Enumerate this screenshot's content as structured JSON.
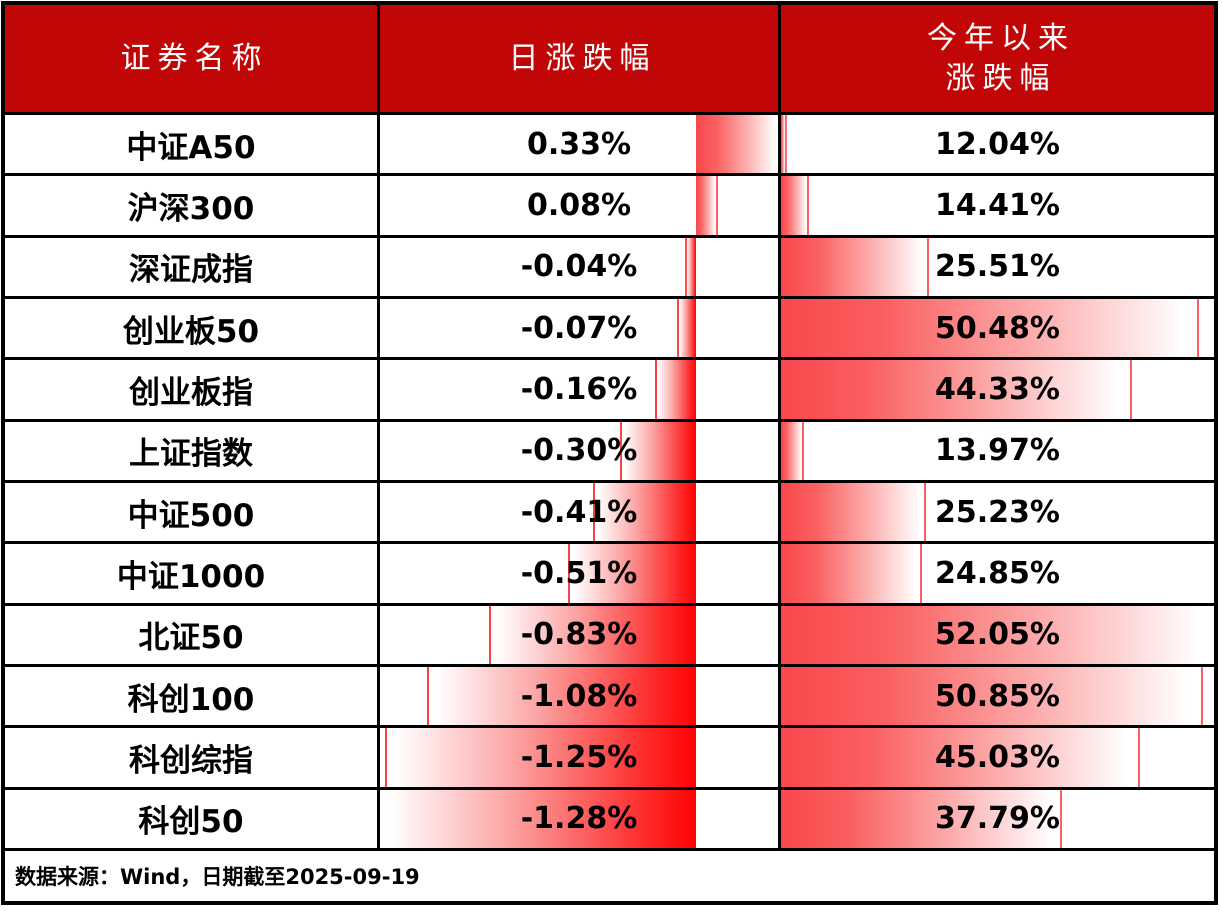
{
  "palette": {
    "header_bg": "#c00606",
    "header_text": "#ffffff",
    "grid_line": "#000000",
    "row_bg": "#ffffff",
    "text": "#000000",
    "bar_red_deep": "#ff0000",
    "bar_red_soft": "#f9474d"
  },
  "header": {
    "security_name": "证券名称",
    "daily_change": "日涨跌幅",
    "ytd_line1": "今年以来",
    "ytd_line2": "涨跌幅"
  },
  "footer": {
    "note": "数据来源：Wind，日期截至2025-09-19"
  },
  "chart_data": {
    "type": "table",
    "columns": [
      "证券名称",
      "日涨跌幅",
      "今年以来涨跌幅"
    ],
    "rows": [
      {
        "name": "中证A50",
        "daily": 0.33,
        "daily_label": "0.33%",
        "ytd": 12.04,
        "ytd_label": "12.04%"
      },
      {
        "name": "沪深300",
        "daily": 0.08,
        "daily_label": "0.08%",
        "ytd": 14.41,
        "ytd_label": "14.41%"
      },
      {
        "name": "深证成指",
        "daily": -0.04,
        "daily_label": "-0.04%",
        "ytd": 25.51,
        "ytd_label": "25.51%"
      },
      {
        "name": "创业板50",
        "daily": -0.07,
        "daily_label": "-0.07%",
        "ytd": 50.48,
        "ytd_label": "50.48%"
      },
      {
        "name": "创业板指",
        "daily": -0.16,
        "daily_label": "-0.16%",
        "ytd": 44.33,
        "ytd_label": "44.33%"
      },
      {
        "name": "上证指数",
        "daily": -0.3,
        "daily_label": "-0.30%",
        "ytd": 13.97,
        "ytd_label": "13.97%"
      },
      {
        "name": "中证500",
        "daily": -0.41,
        "daily_label": "-0.41%",
        "ytd": 25.23,
        "ytd_label": "25.23%"
      },
      {
        "name": "中证1000",
        "daily": -0.51,
        "daily_label": "-0.51%",
        "ytd": 24.85,
        "ytd_label": "24.85%"
      },
      {
        "name": "北证50",
        "daily": -0.83,
        "daily_label": "-0.83%",
        "ytd": 52.05,
        "ytd_label": "52.05%"
      },
      {
        "name": "科创100",
        "daily": -1.08,
        "daily_label": "-1.08%",
        "ytd": 50.85,
        "ytd_label": "50.85%"
      },
      {
        "name": "科创综指",
        "daily": -1.25,
        "daily_label": "-1.25%",
        "ytd": 45.03,
        "ytd_label": "45.03%"
      },
      {
        "name": "科创50",
        "daily": -1.28,
        "daily_label": "-1.28%",
        "ytd": 37.79,
        "ytd_label": "37.79%"
      }
    ],
    "databar_scaling": {
      "daily_min": -1.28,
      "daily_max": 0.33,
      "daily_axis_fraction": 0.795,
      "ytd_min": 12.04,
      "ytd_max": 52.05,
      "ytd_min_bar_fraction": 0.01
    }
  }
}
